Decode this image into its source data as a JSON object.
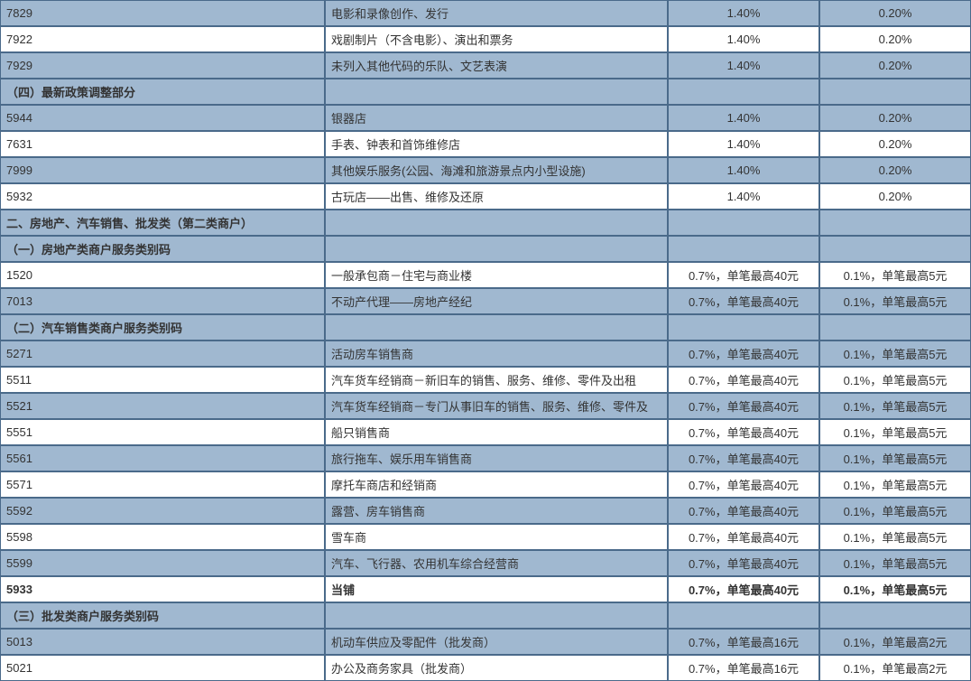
{
  "rows": [
    {
      "type": "data",
      "shade": "blue",
      "code": "7829",
      "desc": "电影和录像创作、发行",
      "rate1": "1.40%",
      "rate2": "0.20%"
    },
    {
      "type": "data",
      "shade": "white",
      "code": "7922",
      "desc": "戏剧制片（不含电影）、演出和票务",
      "rate1": "1.40%",
      "rate2": "0.20%"
    },
    {
      "type": "data",
      "shade": "blue",
      "code": "7929",
      "desc": "未列入其他代码的乐队、文艺表演",
      "rate1": "1.40%",
      "rate2": "0.20%"
    },
    {
      "type": "header",
      "label": "（四）最新政策调整部分"
    },
    {
      "type": "data",
      "shade": "blue",
      "code": "5944",
      "desc": "银器店",
      "rate1": "1.40%",
      "rate2": "0.20%"
    },
    {
      "type": "data",
      "shade": "white",
      "code": "7631",
      "desc": "手表、钟表和首饰维修店",
      "rate1": "1.40%",
      "rate2": "0.20%"
    },
    {
      "type": "data",
      "shade": "blue",
      "code": "7999",
      "desc": "其他娱乐服务(公园、海滩和旅游景点内小型设施)",
      "rate1": "1.40%",
      "rate2": "0.20%"
    },
    {
      "type": "data",
      "shade": "white",
      "code": "5932",
      "desc": "古玩店——出售、维修及还原",
      "rate1": "1.40%",
      "rate2": "0.20%"
    },
    {
      "type": "header",
      "label": "二、房地产、汽车销售、批发类（第二类商户）"
    },
    {
      "type": "header",
      "label": "（一）房地产类商户服务类别码"
    },
    {
      "type": "data",
      "shade": "white",
      "code": "1520",
      "desc": "一般承包商－住宅与商业楼",
      "rate1": "0.7%，单笔最高40元",
      "rate2": "0.1%，单笔最高5元"
    },
    {
      "type": "data",
      "shade": "blue",
      "code": "7013",
      "desc": "不动产代理——房地产经纪",
      "rate1": "0.7%，单笔最高40元",
      "rate2": "0.1%，单笔最高5元"
    },
    {
      "type": "header",
      "label": "（二）汽车销售类商户服务类别码"
    },
    {
      "type": "data",
      "shade": "blue",
      "code": "5271",
      "desc": "活动房车销售商",
      "rate1": "0.7%，单笔最高40元",
      "rate2": "0.1%，单笔最高5元"
    },
    {
      "type": "data",
      "shade": "white",
      "code": "5511",
      "desc": "汽车货车经销商－新旧车的销售、服务、维修、零件及出租",
      "rate1": "0.7%，单笔最高40元",
      "rate2": "0.1%，单笔最高5元"
    },
    {
      "type": "data",
      "shade": "blue",
      "code": "5521",
      "desc": "汽车货车经销商－专门从事旧车的销售、服务、维修、零件及",
      "rate1": "0.7%，单笔最高40元",
      "rate2": "0.1%，单笔最高5元"
    },
    {
      "type": "data",
      "shade": "white",
      "code": "5551",
      "desc": "船只销售商",
      "rate1": "0.7%，单笔最高40元",
      "rate2": "0.1%，单笔最高5元"
    },
    {
      "type": "data",
      "shade": "blue",
      "code": "5561",
      "desc": "旅行拖车、娱乐用车销售商",
      "rate1": "0.7%，单笔最高40元",
      "rate2": "0.1%，单笔最高5元"
    },
    {
      "type": "data",
      "shade": "white",
      "code": "5571",
      "desc": "摩托车商店和经销商",
      "rate1": "0.7%，单笔最高40元",
      "rate2": "0.1%，单笔最高5元"
    },
    {
      "type": "data",
      "shade": "blue",
      "code": "5592",
      "desc": "露营、房车销售商",
      "rate1": "0.7%，单笔最高40元",
      "rate2": "0.1%，单笔最高5元"
    },
    {
      "type": "data",
      "shade": "white",
      "code": "5598",
      "desc": "雪车商",
      "rate1": "0.7%，单笔最高40元",
      "rate2": "0.1%，单笔最高5元"
    },
    {
      "type": "data",
      "shade": "blue",
      "code": "5599",
      "desc": "汽车、飞行器、农用机车综合经营商",
      "rate1": "0.7%，单笔最高40元",
      "rate2": "0.1%，单笔最高5元"
    },
    {
      "type": "data",
      "shade": "white",
      "code": "5933",
      "desc": "当铺",
      "rate1": "0.7%，单笔最高40元",
      "rate2": "0.1%，单笔最高5元",
      "bold": true
    },
    {
      "type": "header",
      "label": "（三）批发类商户服务类别码"
    },
    {
      "type": "data",
      "shade": "blue",
      "code": "5013",
      "desc": "机动车供应及零配件（批发商）",
      "rate1": "0.7%，单笔最高16元",
      "rate2": "0.1%，单笔最高2元"
    },
    {
      "type": "data",
      "shade": "white",
      "code": "5021",
      "desc": "办公及商务家具（批发商）",
      "rate1": "0.7%，单笔最高16元",
      "rate2": "0.1%，单笔最高2元"
    }
  ]
}
